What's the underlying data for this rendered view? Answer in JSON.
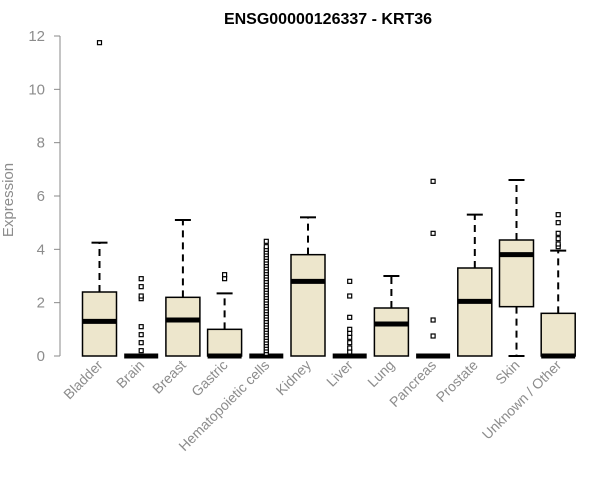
{
  "chart_data": {
    "type": "boxplot",
    "title": "ENSG00000126337 - KRT36",
    "ylabel": "Expression",
    "ylim": [
      0,
      12
    ],
    "yticks": [
      "0",
      "2",
      "4",
      "6",
      "8",
      "10",
      "12"
    ],
    "grid": false,
    "colors": {
      "box_fill": "#ede6cc",
      "stroke": "#000000",
      "axis": "#888888",
      "text": "#8c8c8c"
    },
    "categories": [
      "Bladder",
      "Brain",
      "Breast",
      "Gastric",
      "Hematopoietic cells",
      "Kidney",
      "Liver",
      "Lung",
      "Pancreas",
      "Prostate",
      "Skin",
      "Unknown / Other"
    ],
    "boxes": [
      {
        "q1": 0.0,
        "median": 1.3,
        "q3": 2.4,
        "whisker_low": 0.0,
        "whisker_high": 4.25,
        "outliers": [
          11.75
        ]
      },
      {
        "q1": 0.0,
        "median": 0.0,
        "q3": 0.0,
        "whisker_low": 0.0,
        "whisker_high": 0.0,
        "outliers": [
          0.2,
          0.5,
          0.8,
          1.1,
          2.15,
          2.25,
          2.6,
          2.9
        ]
      },
      {
        "q1": 0.0,
        "median": 1.35,
        "q3": 2.2,
        "whisker_low": 0.0,
        "whisker_high": 5.1,
        "outliers": []
      },
      {
        "q1": 0.0,
        "median": 0.0,
        "q3": 1.0,
        "whisker_low": 0.0,
        "whisker_high": 2.35,
        "outliers": [
          2.9,
          3.05
        ]
      },
      {
        "q1": 0.0,
        "median": 0.0,
        "q3": 0.0,
        "whisker_low": 0.0,
        "whisker_high": 0.0,
        "outliers": [
          0.1,
          0.2,
          0.3,
          0.4,
          0.5,
          0.6,
          0.7,
          0.8,
          0.9,
          1.0,
          1.1,
          1.2,
          1.3,
          1.4,
          1.5,
          1.6,
          1.7,
          1.8,
          1.9,
          2.0,
          2.1,
          2.2,
          2.3,
          2.4,
          2.5,
          2.6,
          2.7,
          2.8,
          2.9,
          3.0,
          3.1,
          3.2,
          3.3,
          3.4,
          3.5,
          3.6,
          3.7,
          3.8,
          3.9,
          4.0,
          4.1,
          4.3
        ]
      },
      {
        "q1": 0.0,
        "median": 2.8,
        "q3": 3.8,
        "whisker_low": 0.0,
        "whisker_high": 5.2,
        "outliers": []
      },
      {
        "q1": 0.0,
        "median": 0.0,
        "q3": 0.0,
        "whisker_low": 0.0,
        "whisker_high": 0.0,
        "outliers": [
          0.15,
          0.3,
          0.5,
          0.7,
          0.85,
          1.0,
          1.45,
          2.25,
          2.8
        ]
      },
      {
        "q1": 0.0,
        "median": 1.2,
        "q3": 1.8,
        "whisker_low": 0.0,
        "whisker_high": 3.0,
        "outliers": []
      },
      {
        "q1": 0.0,
        "median": 0.0,
        "q3": 0.0,
        "whisker_low": 0.0,
        "whisker_high": 0.0,
        "outliers": [
          0.75,
          1.35,
          4.6,
          6.55
        ]
      },
      {
        "q1": 0.0,
        "median": 2.05,
        "q3": 3.3,
        "whisker_low": 0.0,
        "whisker_high": 5.3,
        "outliers": []
      },
      {
        "q1": 1.85,
        "median": 3.8,
        "q3": 4.35,
        "whisker_low": 0.0,
        "whisker_high": 6.6,
        "outliers": []
      },
      {
        "q1": 0.0,
        "median": 0.0,
        "q3": 1.6,
        "whisker_low": 0.0,
        "whisker_high": 3.95,
        "outliers": [
          4.1,
          4.2,
          4.4,
          4.6,
          5.0,
          5.3
        ]
      }
    ]
  }
}
